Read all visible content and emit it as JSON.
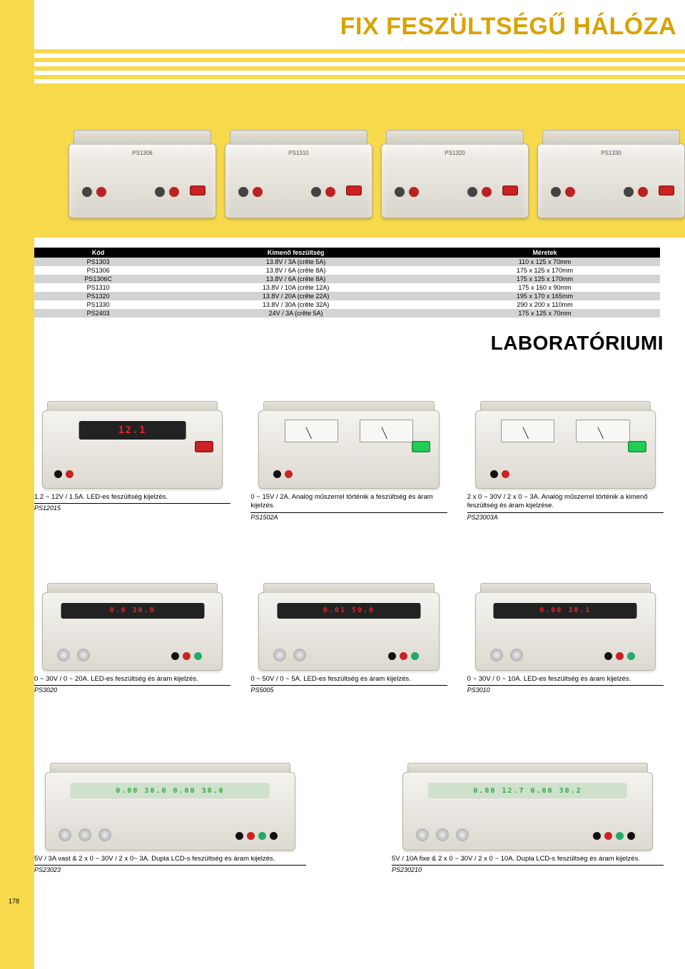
{
  "page_title": "FIX FESZÜLTSÉGŰ HÁLÓZA",
  "section_title": "LABORATÓRIUMI",
  "page_number": "178",
  "colors": {
    "accent_yellow": "#f7d94c",
    "title_gold": "#d8a300",
    "header_black": "#000000",
    "row_grey": "#d5d3d1",
    "row_white": "#ffffff",
    "led_red": "#e23030",
    "lcd_green": "#3a4"
  },
  "table": {
    "headers": [
      "Kód",
      "Kimenő feszültség",
      "Méretek"
    ],
    "rows": [
      [
        "PS1303",
        "13.8V / 3A (crête 5A)",
        "110 x 125 x 70mm"
      ],
      [
        "PS1306",
        "13.8V / 6A (crête 8A)",
        "175 x 125 x 170mm"
      ],
      [
        "PS1306C",
        "13.8V / 6A (crête 8A)",
        "175 x 125 x 170mm"
      ],
      [
        "PS1310",
        "13.8V / 10A (crête 12A)",
        "175 x 160 x 90mm"
      ],
      [
        "PS1320",
        "13.8V / 20A (crête 22A)",
        "195 x 170 x 165mm"
      ],
      [
        "PS1330",
        "13.8V / 30A (crête 32A)",
        "290 x 200 x 110mm"
      ],
      [
        "PS2403",
        "24V / 3A (crête 5A)",
        "175 x 125 x 70mm"
      ]
    ]
  },
  "products_row1": [
    {
      "desc": "1.2 ~ 12V / 1.5A. LED-es feszültség kijelzés.",
      "code": "PS12015",
      "display": "12.1",
      "disp_type": "led"
    },
    {
      "desc": "0 ~ 15V / 2A. Analóg műszerrel történik a feszültség és áram kijelzés.",
      "code": "PS1502A",
      "disp_type": "analog"
    },
    {
      "desc": "2 x 0 ~ 30V / 2 x 0 ~ 3A. Analóg műszerrel történik a kimenő feszültség és áram kijelzése.",
      "code": "PS23003A",
      "disp_type": "analog"
    }
  ],
  "products_row2": [
    {
      "desc": "0 ~ 30V / 0 ~ 20A. LED-es feszültség és áram kijelzés.",
      "code": "PS3020",
      "display": "0.0  30.0",
      "disp_type": "dual-led"
    },
    {
      "desc": "0 ~ 50V / 0 ~ 5A. LED-es feszültség és áram kijelzés.",
      "code": "PS5005",
      "display": "0.01  50.0",
      "disp_type": "dual-led"
    },
    {
      "desc": "0 ~ 30V / 0 ~ 10A.  LED-es feszültség és áram kijelzés.",
      "code": "PS3010",
      "display": "0.00  30.1",
      "disp_type": "dual-led"
    }
  ],
  "products_row3": [
    {
      "desc": "5V / 3A vast & 2 x 0 ~ 30V / 2 x 0~ 3A. Dupla LCD-s feszültség és áram kijelzés.",
      "code": "PS23023",
      "display": "0.00 30.0 0.00 30.0",
      "disp_type": "dual-lcd"
    },
    {
      "desc": "5V / 10A fixe & 2 x 0 ~ 30V / 2 x 0 ~ 10A. Dupla LCD-s feszültség és áram kijelzés.",
      "code": "PS230210",
      "display": "0.00 12.7 0.00 30.2",
      "disp_type": "dual-lcd"
    }
  ]
}
